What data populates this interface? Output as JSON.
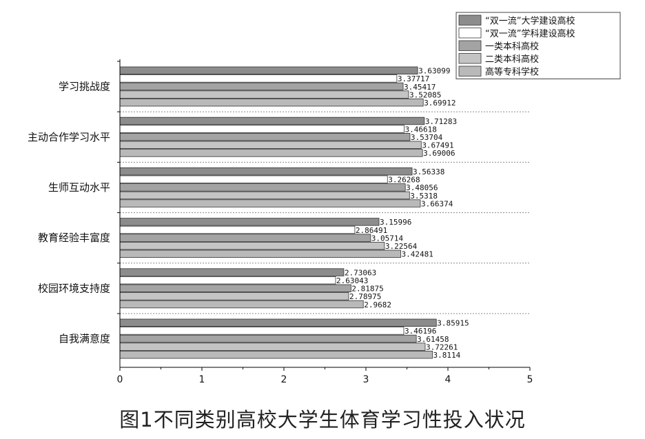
{
  "caption": "图1不同类别高校大学生体育学习性投入状况",
  "chart_data": {
    "type": "bar",
    "orientation": "horizontal",
    "categories": [
      "学习挑战度",
      "主动合作学习水平",
      "生师互动水平",
      "教育经验丰富度",
      "校园环境支持度",
      "自我满意度"
    ],
    "series": [
      {
        "name": "“双一流”大学建设高校",
        "color": "#8c8c8c",
        "values": [
          3.63099,
          3.71283,
          3.56338,
          3.15996,
          2.73063,
          3.85915
        ],
        "labels": [
          "3.63099",
          "3.71283",
          "3.56338",
          "3.15996",
          "2.73063",
          "3.85915"
        ]
      },
      {
        "name": "“双一流”学科建设高校",
        "color": "#ffffff",
        "values": [
          3.37717,
          3.46618,
          3.26268,
          2.86491,
          2.63043,
          3.46196
        ],
        "labels": [
          "3.37717",
          "3.46618",
          "3.26268",
          "2.86491",
          "2.63043",
          "3.46196"
        ]
      },
      {
        "name": "一类本科高校",
        "color": "#a3a3a3",
        "values": [
          3.45417,
          3.53704,
          3.48056,
          3.05714,
          2.81875,
          3.61458
        ],
        "labels": [
          "3.45417",
          "3.53704",
          "3.48056",
          "3.05714",
          "2.81875",
          "3.61458"
        ]
      },
      {
        "name": "二类本科高校",
        "color": "#c4c4c4",
        "values": [
          3.52085,
          3.67491,
          3.5318,
          3.22564,
          2.78975,
          3.72261
        ],
        "labels": [
          "3.52085",
          "3.67491",
          "3.5318",
          "3.22564",
          "2.78975",
          "3.72261"
        ]
      },
      {
        "name": "高等专科学校",
        "color": "#b9b9b9",
        "values": [
          3.69912,
          3.69006,
          3.66374,
          3.42481,
          2.9682,
          3.8114
        ],
        "labels": [
          "3.69912",
          "3.69006",
          "3.66374",
          "3.42481",
          "2.9682",
          "3.8114"
        ]
      }
    ],
    "xlim": [
      0,
      5
    ],
    "xticks": [
      "0",
      "1",
      "2",
      "3",
      "4",
      "5"
    ],
    "legend_position": "top-right",
    "grid": "dotted separators between groups"
  }
}
